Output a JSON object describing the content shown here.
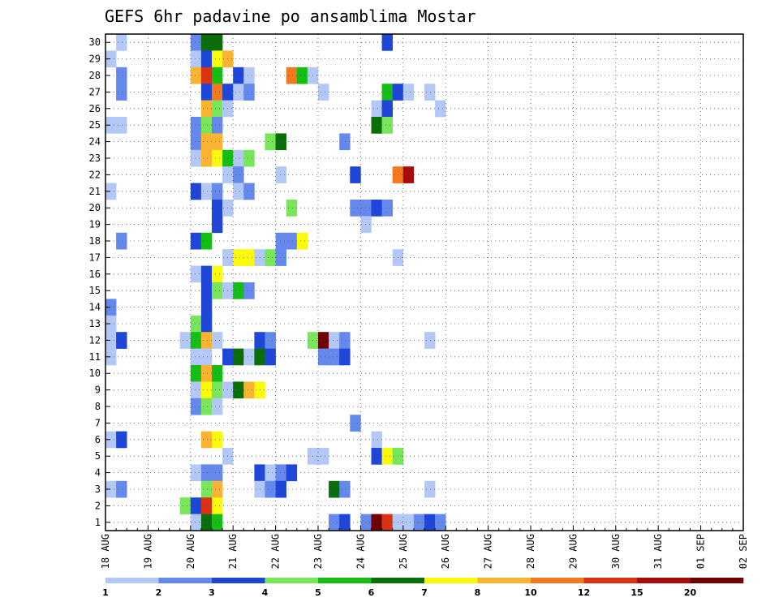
{
  "chart_data": {
    "type": "heatmap",
    "title": "GEFS 6hr padavine po ansamblima Mostar",
    "xlabel": "",
    "ylabel": "",
    "x_ticks": [
      "18 AUG",
      "19 AUG",
      "20 AUG",
      "21 AUG",
      "22 AUG",
      "23 AUG",
      "24 AUG",
      "25 AUG",
      "26 AUG",
      "27 AUG",
      "28 AUG",
      "29 AUG",
      "30 AUG",
      "31 AUG",
      "01 SEP",
      "02 SEP"
    ],
    "y_ticks": [
      1,
      2,
      3,
      4,
      5,
      6,
      7,
      8,
      9,
      10,
      11,
      12,
      13,
      14,
      15,
      16,
      17,
      18,
      19,
      20,
      21,
      22,
      23,
      24,
      25,
      26,
      27,
      28,
      29,
      30
    ],
    "xlim": [
      "18 AUG 00Z",
      "02 SEP 00Z"
    ],
    "ylim": [
      0.5,
      30.5
    ],
    "grid": true,
    "x_step_hours": 6,
    "colorbar": {
      "levels": [
        1,
        2,
        3,
        4,
        5,
        6,
        7,
        8,
        10,
        12,
        15,
        20
      ],
      "colors": [
        "#b4c8f8",
        "#6488ec",
        "#1e46d8",
        "#78e65a",
        "#14be14",
        "#0a6e0a",
        "#fafa0a",
        "#fab432",
        "#f5781e",
        "#dc3214",
        "#aa0a0a",
        "#6e0000"
      ]
    },
    "cells": [
      [
        30,
        1,
        0
      ],
      [
        30,
        8,
        1
      ],
      [
        30,
        9,
        5
      ],
      [
        30,
        10,
        5
      ],
      [
        30,
        26,
        2
      ],
      [
        29,
        0,
        0
      ],
      [
        29,
        8,
        0
      ],
      [
        29,
        9,
        2
      ],
      [
        29,
        10,
        6
      ],
      [
        29,
        11,
        7
      ],
      [
        28,
        1,
        1
      ],
      [
        28,
        8,
        7
      ],
      [
        28,
        9,
        9
      ],
      [
        28,
        10,
        4
      ],
      [
        28,
        12,
        2
      ],
      [
        28,
        13,
        0
      ],
      [
        28,
        17,
        8
      ],
      [
        28,
        18,
        4
      ],
      [
        28,
        19,
        0
      ],
      [
        27,
        1,
        1
      ],
      [
        27,
        9,
        2
      ],
      [
        27,
        10,
        8
      ],
      [
        27,
        11,
        2
      ],
      [
        27,
        12,
        0
      ],
      [
        27,
        13,
        1
      ],
      [
        27,
        20,
        0
      ],
      [
        27,
        26,
        4
      ],
      [
        27,
        27,
        2
      ],
      [
        27,
        28,
        0
      ],
      [
        27,
        30,
        0
      ],
      [
        26,
        9,
        7
      ],
      [
        26,
        10,
        3
      ],
      [
        26,
        11,
        0
      ],
      [
        26,
        25,
        0
      ],
      [
        26,
        26,
        2
      ],
      [
        26,
        31,
        0
      ],
      [
        25,
        0,
        0
      ],
      [
        25,
        1,
        0
      ],
      [
        25,
        8,
        1
      ],
      [
        25,
        9,
        3
      ],
      [
        25,
        10,
        1
      ],
      [
        25,
        25,
        5
      ],
      [
        25,
        26,
        3
      ],
      [
        24,
        8,
        1
      ],
      [
        24,
        9,
        7
      ],
      [
        24,
        10,
        7
      ],
      [
        24,
        15,
        3
      ],
      [
        24,
        16,
        5
      ],
      [
        24,
        22,
        1
      ],
      [
        23,
        8,
        0
      ],
      [
        23,
        9,
        7
      ],
      [
        23,
        10,
        6
      ],
      [
        23,
        11,
        4
      ],
      [
        23,
        12,
        0
      ],
      [
        23,
        13,
        3
      ],
      [
        22,
        11,
        0
      ],
      [
        22,
        12,
        1
      ],
      [
        22,
        16,
        0
      ],
      [
        22,
        23,
        2
      ],
      [
        22,
        27,
        8
      ],
      [
        22,
        28,
        10
      ],
      [
        21,
        0,
        0
      ],
      [
        21,
        8,
        2
      ],
      [
        21,
        9,
        0
      ],
      [
        21,
        10,
        1
      ],
      [
        21,
        12,
        0
      ],
      [
        21,
        13,
        1
      ],
      [
        20,
        10,
        2
      ],
      [
        20,
        11,
        0
      ],
      [
        20,
        17,
        3
      ],
      [
        20,
        23,
        1
      ],
      [
        20,
        24,
        1
      ],
      [
        20,
        25,
        2
      ],
      [
        20,
        26,
        1
      ],
      [
        19,
        10,
        2
      ],
      [
        19,
        24,
        0
      ],
      [
        18,
        1,
        1
      ],
      [
        18,
        8,
        2
      ],
      [
        18,
        9,
        4
      ],
      [
        18,
        16,
        1
      ],
      [
        18,
        17,
        1
      ],
      [
        18,
        18,
        6
      ],
      [
        17,
        11,
        0
      ],
      [
        17,
        12,
        6
      ],
      [
        17,
        13,
        6
      ],
      [
        17,
        14,
        0
      ],
      [
        17,
        15,
        3
      ],
      [
        17,
        16,
        1
      ],
      [
        17,
        27,
        0
      ],
      [
        16,
        8,
        0
      ],
      [
        16,
        9,
        2
      ],
      [
        16,
        10,
        6
      ],
      [
        15,
        9,
        2
      ],
      [
        15,
        10,
        3
      ],
      [
        15,
        11,
        0
      ],
      [
        15,
        12,
        4
      ],
      [
        15,
        13,
        1
      ],
      [
        14,
        0,
        1
      ],
      [
        14,
        9,
        2
      ],
      [
        13,
        0,
        0
      ],
      [
        13,
        8,
        3
      ],
      [
        13,
        9,
        2
      ],
      [
        12,
        0,
        0
      ],
      [
        12,
        1,
        2
      ],
      [
        12,
        7,
        0
      ],
      [
        12,
        8,
        4
      ],
      [
        12,
        9,
        7
      ],
      [
        12,
        10,
        0
      ],
      [
        12,
        14,
        2
      ],
      [
        12,
        15,
        1
      ],
      [
        12,
        19,
        3
      ],
      [
        12,
        20,
        11
      ],
      [
        12,
        21,
        0
      ],
      [
        12,
        22,
        1
      ],
      [
        12,
        30,
        0
      ],
      [
        11,
        0,
        0
      ],
      [
        11,
        8,
        0
      ],
      [
        11,
        9,
        0
      ],
      [
        11,
        11,
        2
      ],
      [
        11,
        12,
        5
      ],
      [
        11,
        13,
        0
      ],
      [
        11,
        14,
        5
      ],
      [
        11,
        15,
        2
      ],
      [
        11,
        20,
        1
      ],
      [
        11,
        21,
        1
      ],
      [
        11,
        22,
        2
      ],
      [
        10,
        8,
        4
      ],
      [
        10,
        9,
        7
      ],
      [
        10,
        10,
        4
      ],
      [
        9,
        8,
        0
      ],
      [
        9,
        9,
        6
      ],
      [
        9,
        10,
        3
      ],
      [
        9,
        11,
        0
      ],
      [
        9,
        12,
        5
      ],
      [
        9,
        13,
        7
      ],
      [
        9,
        14,
        6
      ],
      [
        8,
        8,
        1
      ],
      [
        8,
        9,
        3
      ],
      [
        8,
        10,
        0
      ],
      [
        7,
        23,
        1
      ],
      [
        6,
        0,
        0
      ],
      [
        6,
        1,
        2
      ],
      [
        6,
        9,
        7
      ],
      [
        6,
        10,
        6
      ],
      [
        6,
        25,
        0
      ],
      [
        5,
        11,
        0
      ],
      [
        5,
        19,
        0
      ],
      [
        5,
        20,
        0
      ],
      [
        5,
        25,
        2
      ],
      [
        5,
        26,
        6
      ],
      [
        5,
        27,
        3
      ],
      [
        4,
        8,
        0
      ],
      [
        4,
        9,
        1
      ],
      [
        4,
        10,
        1
      ],
      [
        4,
        14,
        2
      ],
      [
        4,
        15,
        0
      ],
      [
        4,
        16,
        1
      ],
      [
        4,
        17,
        2
      ],
      [
        3,
        0,
        0
      ],
      [
        3,
        1,
        1
      ],
      [
        3,
        9,
        3
      ],
      [
        3,
        10,
        7
      ],
      [
        3,
        14,
        0
      ],
      [
        3,
        15,
        1
      ],
      [
        3,
        16,
        2
      ],
      [
        3,
        21,
        5
      ],
      [
        3,
        22,
        1
      ],
      [
        3,
        30,
        0
      ],
      [
        2,
        7,
        3
      ],
      [
        2,
        8,
        2
      ],
      [
        2,
        9,
        9
      ],
      [
        2,
        10,
        6
      ],
      [
        1,
        8,
        0
      ],
      [
        1,
        9,
        5
      ],
      [
        1,
        10,
        4
      ],
      [
        1,
        21,
        1
      ],
      [
        1,
        22,
        2
      ],
      [
        1,
        24,
        1
      ],
      [
        1,
        25,
        11
      ],
      [
        1,
        26,
        9
      ],
      [
        1,
        27,
        0
      ],
      [
        1,
        28,
        0
      ],
      [
        1,
        29,
        1
      ],
      [
        1,
        30,
        2
      ],
      [
        1,
        31,
        1
      ]
    ]
  }
}
